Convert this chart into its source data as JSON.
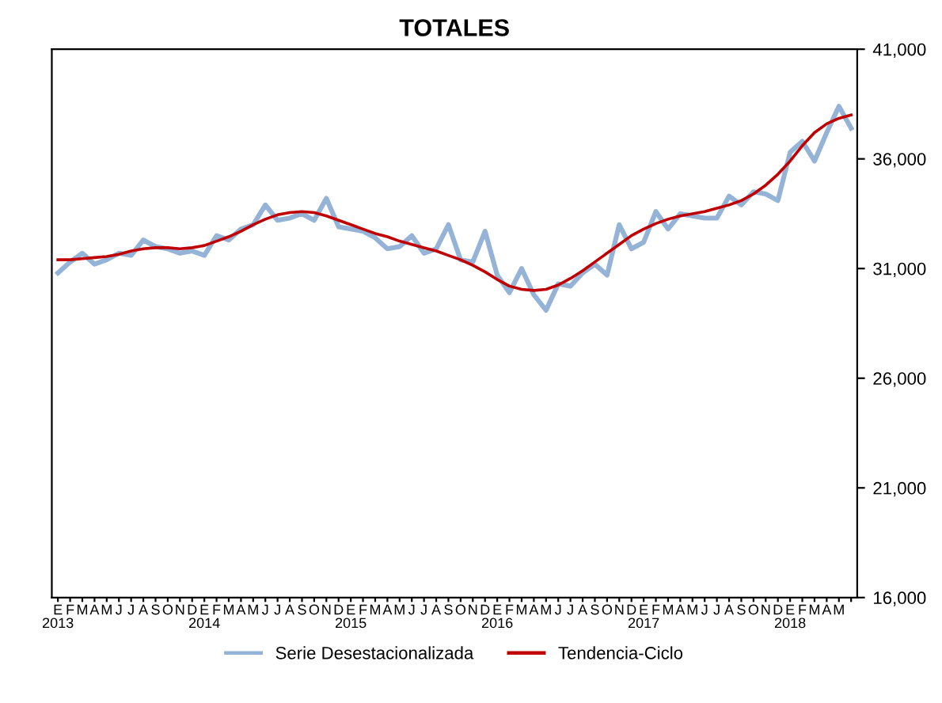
{
  "chart_data": {
    "type": "line",
    "title": "TOTALES",
    "categories": [
      "E\n2013",
      "F",
      "M",
      "A",
      "M",
      "J",
      "J",
      "A",
      "S",
      "O",
      "N",
      "D",
      "E\n2014",
      "F",
      "M",
      "A",
      "M",
      "J",
      "J",
      "A",
      "S",
      "O",
      "N",
      "D",
      "E\n2015",
      "F",
      "M",
      "A",
      "M",
      "J",
      "J",
      "A",
      "S",
      "O",
      "N",
      "D",
      "E\n2016",
      "F",
      "M",
      "A",
      "M",
      "J",
      "J",
      "A",
      "S",
      "O",
      "N",
      "D",
      "E\n2017",
      "F",
      "M",
      "A",
      "M",
      "J",
      "J",
      "A",
      "S",
      "O",
      "N",
      "D",
      "E\n2018",
      "F",
      "M",
      "A",
      "M",
      null
    ],
    "series": [
      {
        "name": "Serie Desestacionalizada",
        "color": "#95b3d7",
        "values": [
          30800,
          31300,
          31700,
          31200,
          31400,
          31700,
          31600,
          32300,
          32000,
          31900,
          31700,
          31800,
          31600,
          32500,
          32300,
          32800,
          33000,
          33900,
          33200,
          33300,
          33500,
          33200,
          34200,
          32900,
          32800,
          32700,
          32400,
          31900,
          32000,
          32500,
          31700,
          31900,
          33000,
          31400,
          31300,
          32700,
          30700,
          29900,
          31000,
          29800,
          29100,
          30300,
          30200,
          30800,
          31200,
          30700,
          33000,
          31900,
          32200,
          33600,
          32800,
          33500,
          33400,
          33300,
          33300,
          34300,
          33900,
          34500,
          34400,
          34100,
          36300,
          36800,
          35900,
          37200,
          38400,
          37400
        ]
      },
      {
        "name": "Tendencia-Ciclo",
        "color": "#c00000",
        "values": [
          31400,
          31400,
          31450,
          31500,
          31550,
          31650,
          31800,
          31900,
          31950,
          31950,
          31900,
          31950,
          32050,
          32250,
          32450,
          32700,
          33000,
          33250,
          33450,
          33550,
          33600,
          33550,
          33400,
          33200,
          33000,
          32800,
          32600,
          32450,
          32250,
          32100,
          31950,
          31800,
          31600,
          31400,
          31150,
          30850,
          30500,
          30200,
          30050,
          30000,
          30050,
          30250,
          30550,
          30900,
          31300,
          31700,
          32100,
          32500,
          32800,
          33050,
          33250,
          33400,
          33500,
          33600,
          33750,
          33900,
          34100,
          34400,
          34800,
          35300,
          35900,
          36600,
          37200,
          37600,
          37850,
          38000
        ]
      }
    ],
    "ylim": [
      16000,
      41000
    ],
    "yticks": [
      {
        "value": 16000,
        "label": "16,000"
      },
      {
        "value": 21000,
        "label": "21,000"
      },
      {
        "value": 26000,
        "label": "26,000"
      },
      {
        "value": 31000,
        "label": "31,000"
      },
      {
        "value": 36000,
        "label": "36,000"
      },
      {
        "value": 41000,
        "label": "41,000"
      }
    ],
    "grid": false,
    "legend": "bottom",
    "marker": "none",
    "line_style": "solid"
  }
}
